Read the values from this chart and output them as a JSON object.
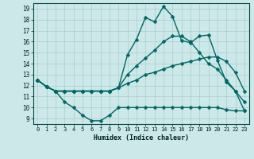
{
  "title": "",
  "xlabel": "Humidex (Indice chaleur)",
  "xlim": [
    -0.5,
    23.5
  ],
  "ylim": [
    8.5,
    19.5
  ],
  "yticks": [
    9,
    10,
    11,
    12,
    13,
    14,
    15,
    16,
    17,
    18,
    19
  ],
  "xticks": [
    0,
    1,
    2,
    3,
    4,
    5,
    6,
    7,
    8,
    9,
    10,
    11,
    12,
    13,
    14,
    15,
    16,
    17,
    18,
    19,
    20,
    21,
    22,
    23
  ],
  "bg_color": "#cce8e8",
  "grid_color": "#aacccc",
  "line_color": "#006666",
  "series": [
    {
      "x": [
        0,
        1,
        2,
        3,
        4,
        5,
        6,
        7,
        8,
        9,
        10,
        11,
        12,
        13,
        14,
        15,
        16,
        17,
        18,
        19,
        20,
        21,
        22,
        23
      ],
      "y": [
        12.5,
        11.9,
        11.5,
        10.5,
        10.0,
        9.3,
        8.8,
        8.8,
        9.3,
        10.0,
        10.0,
        10.0,
        10.0,
        10.0,
        10.0,
        10.0,
        10.0,
        10.0,
        10.0,
        10.0,
        10.0,
        9.8,
        9.7,
        9.7
      ]
    },
    {
      "x": [
        0,
        1,
        2,
        3,
        4,
        5,
        6,
        7,
        8,
        9,
        10,
        11,
        12,
        13,
        14,
        15,
        16,
        17,
        18,
        19,
        20,
        21,
        22,
        23
      ],
      "y": [
        12.5,
        11.9,
        11.5,
        11.5,
        11.5,
        11.5,
        11.5,
        11.5,
        11.5,
        11.8,
        12.2,
        12.5,
        13.0,
        13.2,
        13.5,
        13.8,
        14.0,
        14.2,
        14.4,
        14.6,
        14.6,
        14.2,
        13.2,
        11.5
      ]
    },
    {
      "x": [
        0,
        1,
        2,
        3,
        4,
        5,
        6,
        7,
        8,
        9,
        10,
        11,
        12,
        13,
        14,
        15,
        16,
        17,
        18,
        19,
        20,
        21,
        22,
        23
      ],
      "y": [
        12.5,
        11.9,
        11.5,
        11.5,
        11.5,
        11.5,
        11.5,
        11.5,
        11.5,
        11.8,
        13.0,
        13.8,
        14.5,
        15.2,
        16.0,
        16.5,
        16.5,
        16.0,
        15.0,
        14.0,
        13.5,
        12.5,
        11.5,
        10.5
      ]
    },
    {
      "x": [
        0,
        1,
        2,
        3,
        4,
        5,
        6,
        7,
        8,
        9,
        10,
        11,
        12,
        13,
        14,
        15,
        16,
        17,
        18,
        19,
        20,
        21,
        22,
        23
      ],
      "y": [
        12.5,
        11.9,
        11.5,
        11.5,
        11.5,
        11.5,
        11.5,
        11.5,
        11.5,
        11.8,
        14.8,
        16.2,
        18.2,
        17.8,
        19.2,
        18.3,
        16.1,
        15.9,
        16.5,
        16.6,
        14.3,
        12.3,
        11.5,
        9.7
      ]
    }
  ],
  "marker_series": [
    3
  ],
  "markersize": 2.5,
  "linewidth": 1.0
}
